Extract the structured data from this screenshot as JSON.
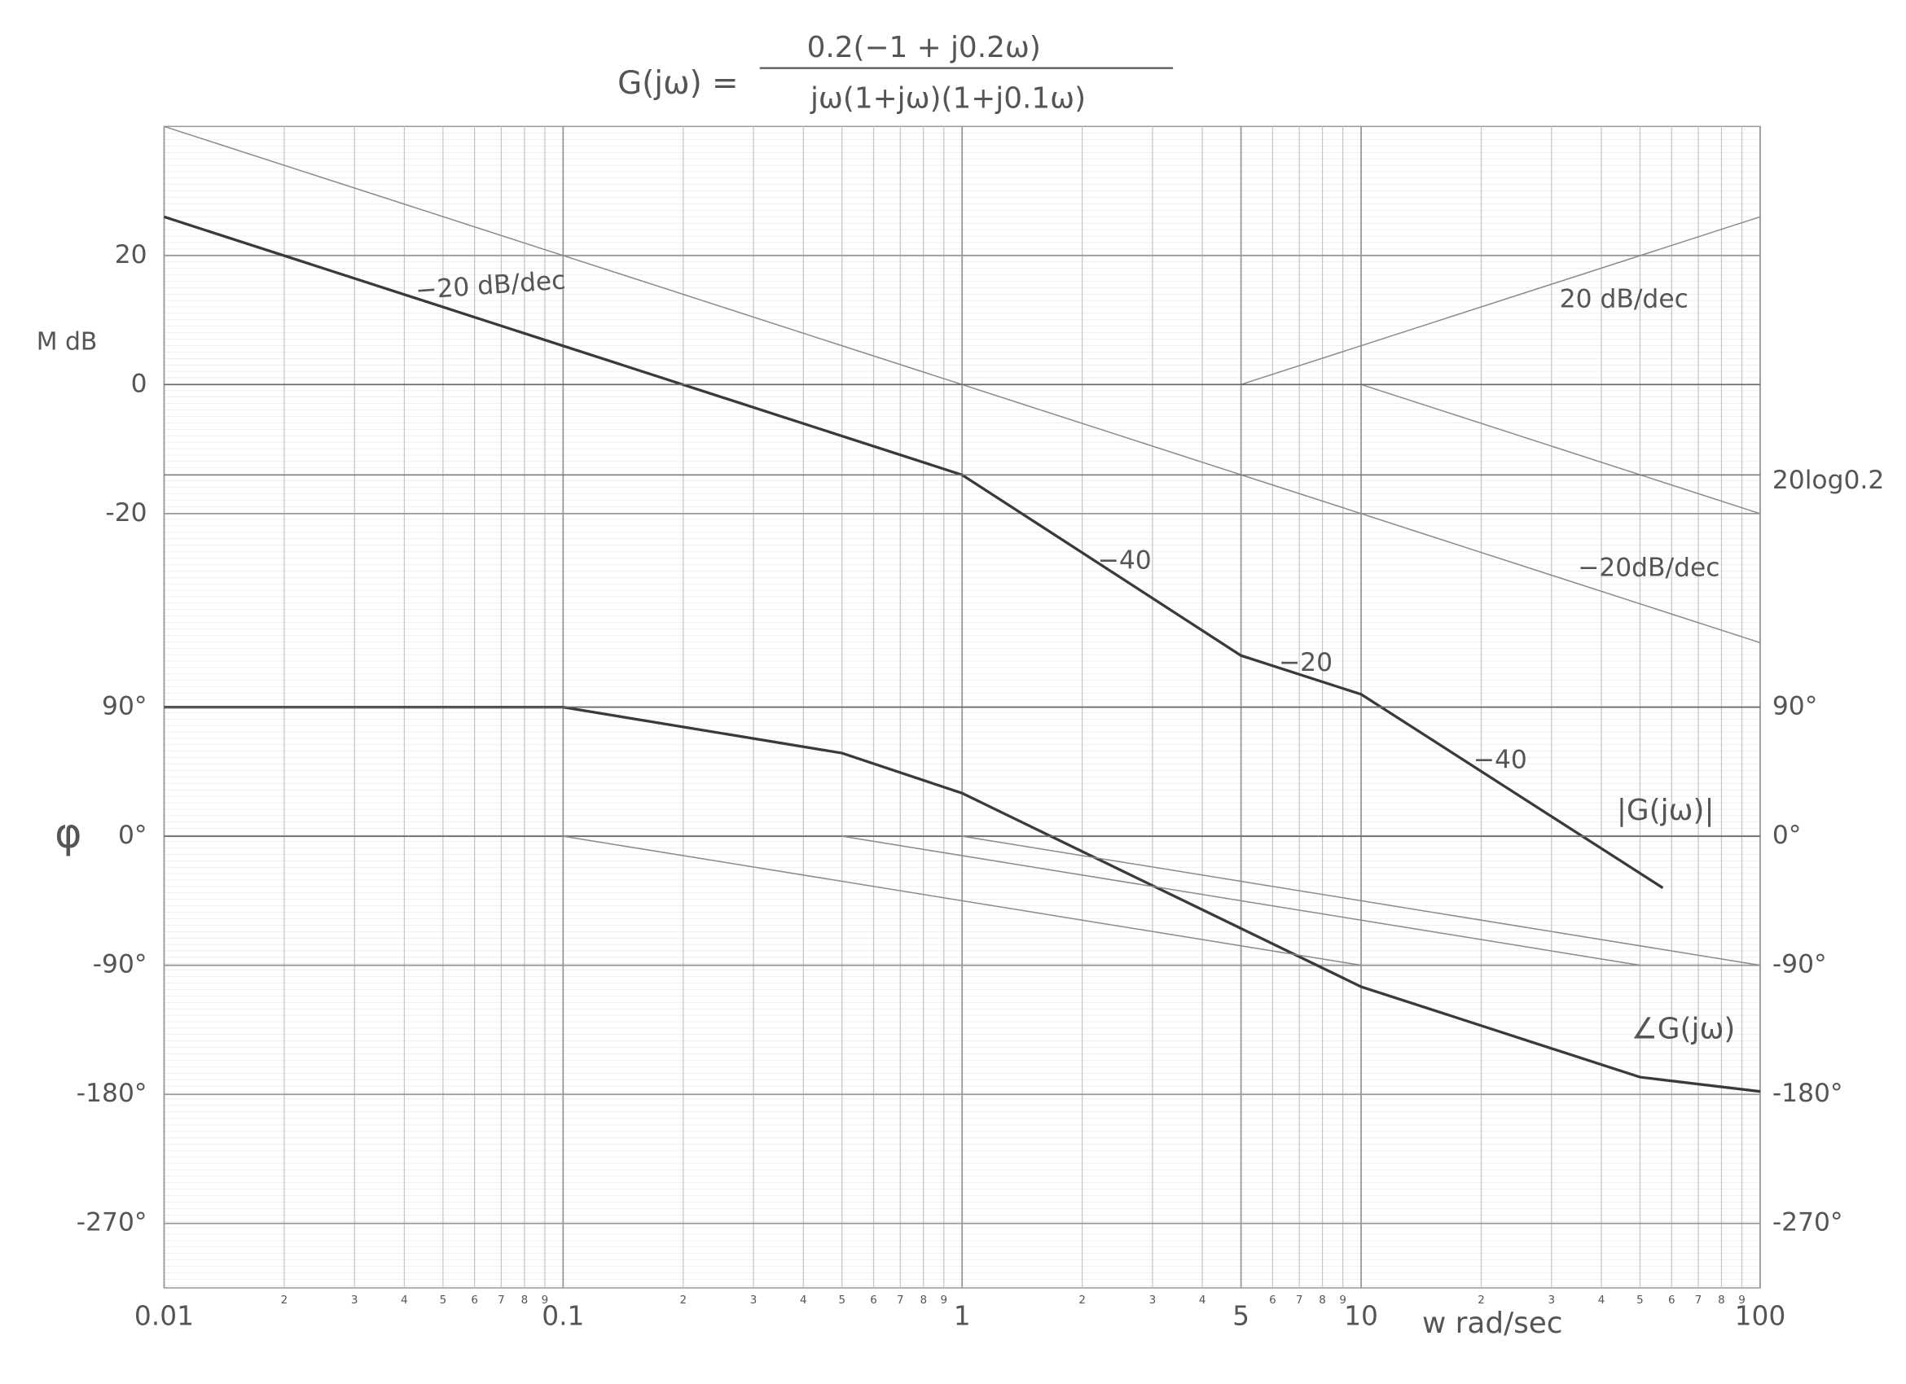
{
  "title": {
    "lhs": "G(jω) =",
    "numerator": "0.2(−1 + j0.2ω)",
    "denominator": "jω(1+jω)(1+j0.1ω)"
  },
  "chart_data": [
    {
      "type": "line",
      "x_label": "w rad/sec",
      "y_label": "M dB",
      "log_x": true,
      "grid": true,
      "xlim": [
        0.01,
        100
      ],
      "xticks": [
        0.01,
        {
          "value": 0.02,
          "label": "2"
        },
        {
          "value": 0.03,
          "label": "3"
        },
        {
          "value": 0.04,
          "label": "4"
        },
        {
          "value": 0.05,
          "label": "5"
        },
        {
          "value": 0.06,
          "label": "6"
        },
        {
          "value": 0.07,
          "label": "7"
        },
        {
          "value": 0.08,
          "label": "8"
        },
        {
          "value": 0.09,
          "label": "9"
        },
        0.1,
        {
          "value": 0.2,
          "label": "2"
        },
        {
          "value": 0.3,
          "label": "3"
        },
        {
          "value": 0.4,
          "label": "4"
        },
        {
          "value": 0.5,
          "label": "5"
        },
        {
          "value": 0.6,
          "label": "6"
        },
        {
          "value": 0.7,
          "label": "7"
        },
        {
          "value": 0.8,
          "label": "8"
        },
        {
          "value": 0.9,
          "label": "9"
        },
        1,
        2,
        3,
        4,
        5,
        6,
        7,
        8,
        9,
        10,
        {
          "value": 20,
          "label": "2"
        },
        {
          "value": 30,
          "label": "3"
        },
        {
          "value": 40,
          "label": "4"
        },
        {
          "value": 50,
          "label": "5"
        },
        {
          "value": 60,
          "label": "6"
        },
        {
          "value": 70,
          "label": "7"
        },
        {
          "value": 80,
          "label": "8"
        },
        {
          "value": 90,
          "label": "9"
        },
        100
      ],
      "ylim": [
        -140,
        40
      ],
      "yticks": [
        20,
        0,
        -20
      ],
      "series": [
        {
          "name": "|G(jω)|",
          "color": "#3a3a3a",
          "x": [
            0.01,
            1,
            5,
            10,
            57
          ],
          "values": [
            26,
            -14,
            -42,
            -48,
            -78
          ]
        },
        {
          "color": "#8a8a8a",
          "x": [
            0.01,
            100
          ],
          "values": [
            40,
            -40
          ]
        },
        {
          "color": "#8a8a8a",
          "x": [
            5,
            100
          ],
          "values": [
            0,
            26
          ]
        },
        {
          "color": "#8a8a8a",
          "x": [
            10,
            100
          ],
          "values": [
            0,
            -20
          ]
        },
        {
          "color": "#777777",
          "x": [
            0.01,
            100
          ],
          "values": [
            -14,
            -14
          ]
        },
        {
          "color": "#666666",
          "x": [
            0.01,
            100
          ],
          "values": [
            0,
            0
          ]
        }
      ],
      "annotations": [
        "−20 dB/dec",
        "20 dB/dec",
        "20log0.2",
        "−40",
        "−20",
        "−40",
        "−20dB/dec"
      ]
    },
    {
      "type": "line",
      "y_label": "φ",
      "log_x": true,
      "xlim": [
        0.01,
        100
      ],
      "ylim": [
        -315,
        495
      ],
      "yticks": [
        {
          "value": 90,
          "label": "90°"
        },
        {
          "value": 0,
          "label": "0°"
        },
        {
          "value": -90,
          "label": "-90°"
        },
        {
          "value": -180,
          "label": "-180°"
        },
        {
          "value": -270,
          "label": "-270°"
        }
      ],
      "series": [
        {
          "name": "∠G(jω)",
          "color": "#3a3a3a",
          "x": [
            0.01,
            0.1,
            0.5,
            1,
            10,
            50,
            100
          ],
          "values": [
            90,
            90,
            58,
            30,
            -105,
            -168,
            -178
          ]
        },
        {
          "color": "#666666",
          "x": [
            0.01,
            100
          ],
          "values": [
            0,
            0
          ]
        },
        {
          "color": "#666666",
          "x": [
            0.01,
            100
          ],
          "values": [
            90,
            90
          ]
        },
        {
          "color": "#8a8a8a",
          "x": [
            0.1,
            10
          ],
          "values": [
            0,
            -90
          ]
        },
        {
          "color": "#8a8a8a",
          "x": [
            0.5,
            50
          ],
          "values": [
            0,
            -90
          ]
        },
        {
          "color": "#8a8a8a",
          "x": [
            1,
            100
          ],
          "values": [
            0,
            -90
          ]
        }
      ]
    }
  ]
}
